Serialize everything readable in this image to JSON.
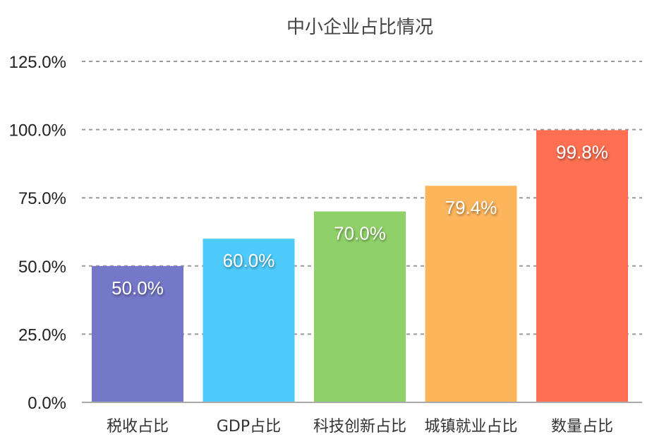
{
  "chart_data": {
    "type": "bar",
    "title": "中小企业占比情况",
    "categories": [
      "税收占比",
      "GDP占比",
      "科技创新占比",
      "城镇就业占比",
      "数量占比"
    ],
    "values": [
      50.0,
      60.0,
      70.0,
      79.4,
      99.8
    ],
    "data_labels": [
      "50.0%",
      "60.0%",
      "70.0%",
      "79.4%",
      "99.8%"
    ],
    "colors": [
      "#7577c9",
      "#4ecbfb",
      "#8fd168",
      "#fdb55c",
      "#ff7052"
    ],
    "ylim": [
      0,
      125
    ],
    "yticks": [
      0,
      25,
      50,
      75,
      100,
      125
    ],
    "ytick_labels": [
      "0.0%",
      "25.0%",
      "50.0%",
      "75.0%",
      "100.0%",
      "125.0%"
    ],
    "grid": true,
    "xlabel": "",
    "ylabel": ""
  }
}
